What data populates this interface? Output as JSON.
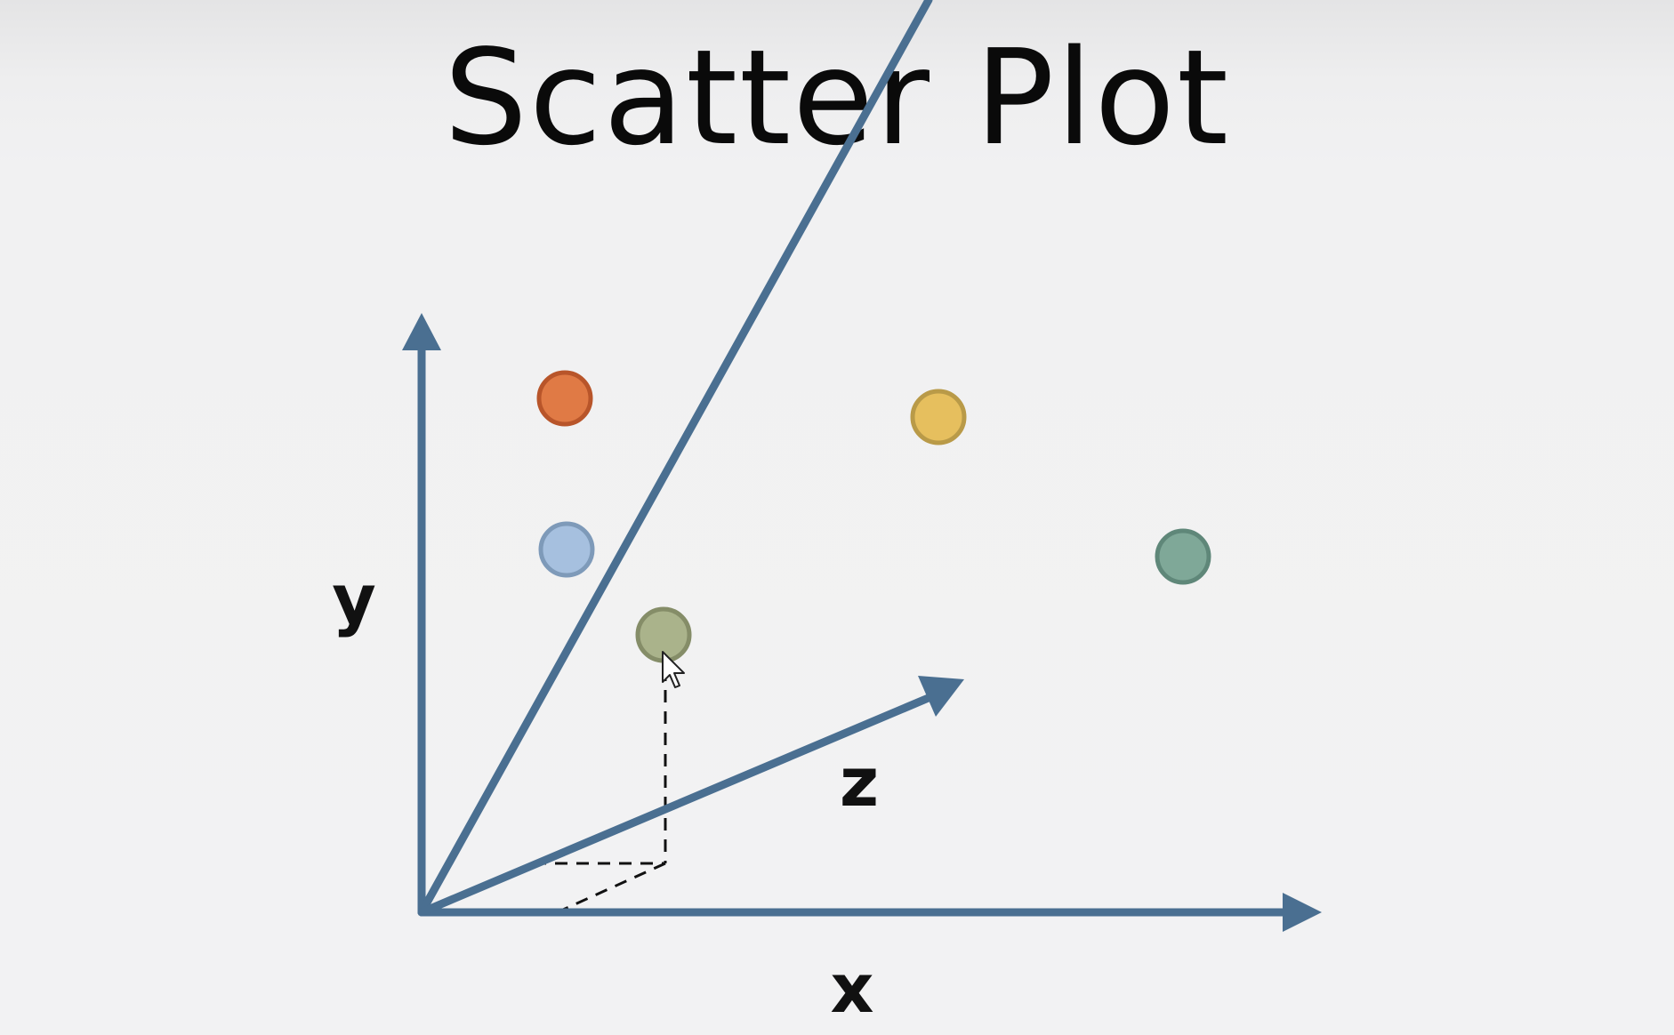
{
  "slide": {
    "title": "Scatter Plot"
  },
  "axes": {
    "x_label": "x",
    "y_label": "y",
    "z_label": "z",
    "axis_color": "#4a6f91"
  },
  "points": [
    {
      "name": "orange-point",
      "color": "#e07a45",
      "stroke": "#b8552a"
    },
    {
      "name": "yellow-point",
      "color": "#e6bf5e",
      "stroke": "#b99a48"
    },
    {
      "name": "light-blue-point",
      "color": "#a6c0df",
      "stroke": "#7e9ab9"
    },
    {
      "name": "teal-point",
      "color": "#7fa898",
      "stroke": "#5f8779"
    },
    {
      "name": "olive-point",
      "color": "#aab38b",
      "stroke": "#858d68"
    }
  ],
  "cursor": {
    "icon": "mouse-pointer-icon"
  }
}
